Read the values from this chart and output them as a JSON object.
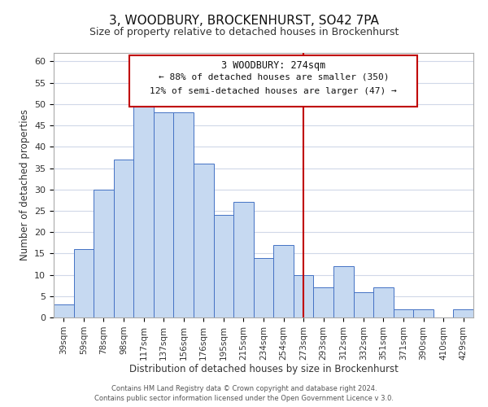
{
  "title": "3, WOODBURY, BROCKENHURST, SO42 7PA",
  "subtitle": "Size of property relative to detached houses in Brockenhurst",
  "xlabel": "Distribution of detached houses by size in Brockenhurst",
  "ylabel": "Number of detached properties",
  "categories": [
    "39sqm",
    "59sqm",
    "78sqm",
    "98sqm",
    "117sqm",
    "137sqm",
    "156sqm",
    "176sqm",
    "195sqm",
    "215sqm",
    "234sqm",
    "254sqm",
    "273sqm",
    "293sqm",
    "312sqm",
    "332sqm",
    "351sqm",
    "371sqm",
    "390sqm",
    "410sqm",
    "429sqm"
  ],
  "values": [
    3,
    16,
    30,
    37,
    50,
    48,
    48,
    36,
    24,
    27,
    14,
    17,
    10,
    7,
    12,
    6,
    7,
    2,
    2,
    0,
    2
  ],
  "bar_color": "#c6d9f1",
  "bar_edge_color": "#4472c4",
  "ylim": [
    0,
    62
  ],
  "yticks": [
    0,
    5,
    10,
    15,
    20,
    25,
    30,
    35,
    40,
    45,
    50,
    55,
    60
  ],
  "vline_x_idx": 12,
  "vline_color": "#c00000",
  "annotation_title": "3 WOODBURY: 274sqm",
  "annotation_line1": "← 88% of detached houses are smaller (350)",
  "annotation_line2": "12% of semi-detached houses are larger (47) →",
  "annotation_box_color": "#c00000",
  "footer_line1": "Contains HM Land Registry data © Crown copyright and database right 2024.",
  "footer_line2": "Contains public sector information licensed under the Open Government Licence v 3.0.",
  "background_color": "#ffffff",
  "grid_color": "#d0d8e8",
  "title_fontsize": 11,
  "subtitle_fontsize": 9,
  "ylabel_fontsize": 8.5,
  "xlabel_fontsize": 8.5,
  "tick_fontsize": 7.5,
  "ytick_fontsize": 8
}
